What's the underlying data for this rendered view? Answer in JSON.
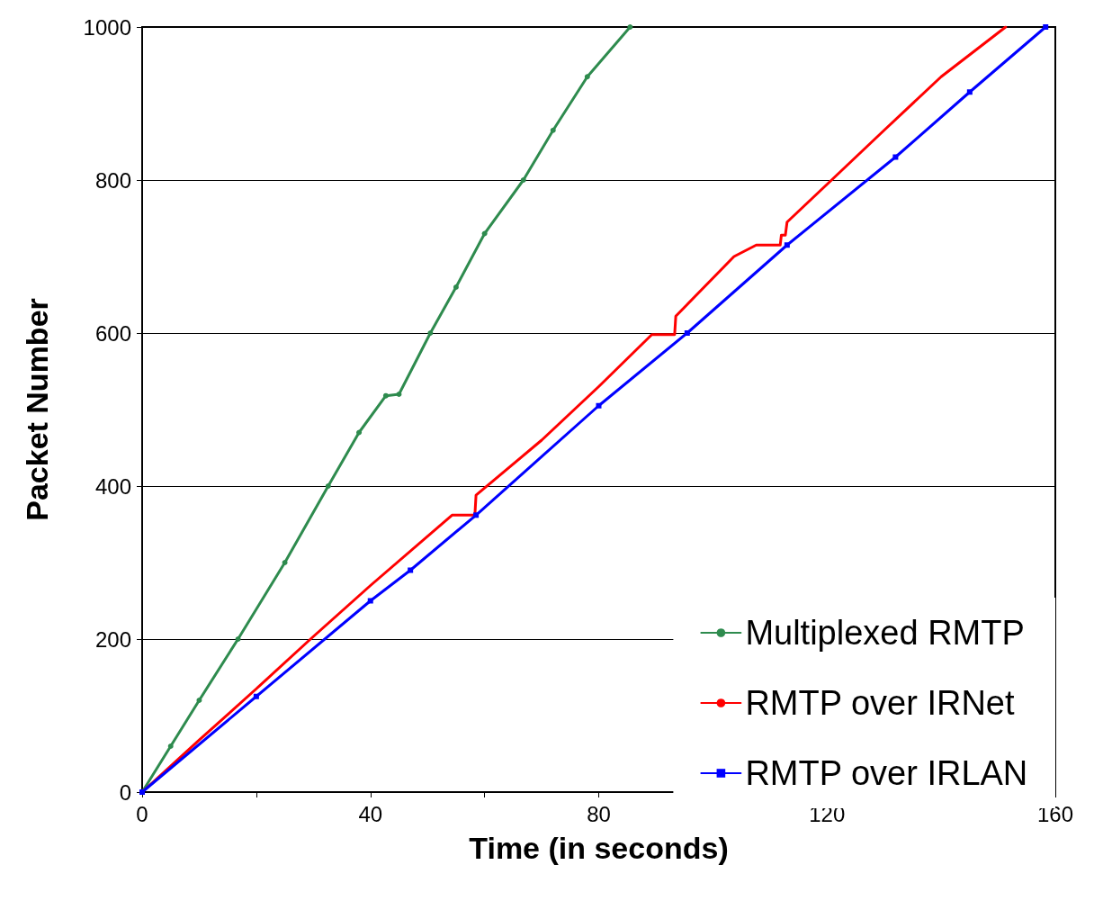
{
  "chart_data": {
    "type": "line",
    "xlabel": "Time (in seconds)",
    "ylabel": "Packet Number",
    "xlim": [
      0,
      160
    ],
    "ylim": [
      0,
      1000
    ],
    "xticks": [
      0,
      {
        "value": 20,
        "label": null
      },
      40,
      {
        "value": 60,
        "label": null
      },
      80,
      {
        "value": 100,
        "label": null
      },
      120,
      {
        "value": 140,
        "label": null
      },
      160
    ],
    "yticks": [
      0,
      200,
      400,
      600,
      800,
      1000
    ],
    "grid": "y",
    "legend": "bottom right",
    "line_style": "solid",
    "series": [
      {
        "name": "Multiplexed RMTP",
        "color": "#2e8b4e",
        "marker": "circle",
        "x": [
          0,
          5,
          10,
          16.8,
          25,
          32.6,
          38,
          42.7,
          45,
          50.5,
          55,
          60,
          66.8,
          72,
          78,
          85.5
        ],
        "values": [
          0,
          60,
          120,
          200,
          300,
          400,
          470,
          518,
          520,
          600,
          660,
          730,
          800,
          865,
          935,
          1000
        ]
      },
      {
        "name": "RMTP over IRNet",
        "color": "#ff0000",
        "marker": "none",
        "x": [
          0,
          10,
          20,
          29.5,
          40,
          54.3,
          58.3,
          58.5,
          70,
          80,
          89.3,
          93.3,
          93.5,
          103.7,
          107.6,
          107.9,
          111.8,
          112.0,
          112.7,
          113,
          120.8,
          130,
          140,
          151.3
        ],
        "values": [
          0,
          68,
          135,
          200,
          270,
          362,
          362,
          388,
          460,
          530,
          598,
          598,
          622,
          700,
          715,
          715,
          715,
          728,
          728,
          745,
          800,
          865,
          935,
          1000
        ]
      },
      {
        "name": "RMTP over IRLAN",
        "color": "#0000ff",
        "marker": "square",
        "x": [
          0,
          20,
          40,
          47,
          58.5,
          80,
          95.5,
          113,
          132,
          145,
          158.3
        ],
        "values": [
          0,
          125,
          250,
          290,
          362,
          505,
          600,
          715,
          830,
          915,
          1000
        ]
      }
    ]
  }
}
